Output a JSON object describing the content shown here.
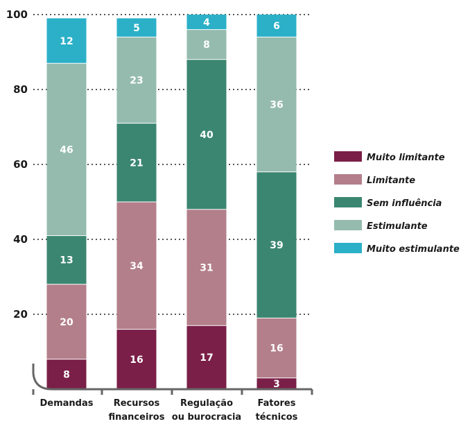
{
  "chart_data": {
    "type": "bar",
    "stacked": true,
    "categories": [
      [
        "Demandas"
      ],
      [
        "Recursos",
        "financeiros"
      ],
      [
        "Regulação",
        "ou burocracia"
      ],
      [
        "Fatores",
        "técnicos"
      ]
    ],
    "series": [
      {
        "name": "Muito limitante",
        "color": "#7a1f48",
        "values": [
          8,
          16,
          17,
          3
        ]
      },
      {
        "name": "Limitante",
        "color": "#b37f8a",
        "values": [
          20,
          34,
          31,
          16
        ]
      },
      {
        "name": "Sem influência",
        "color": "#3b8671",
        "values": [
          13,
          21,
          40,
          39
        ]
      },
      {
        "name": "Estimulante",
        "color": "#95bbaf",
        "values": [
          46,
          23,
          8,
          36
        ]
      },
      {
        "name": "Muito estimulante",
        "color": "#2bb0c8",
        "values": [
          12,
          5,
          4,
          6
        ]
      }
    ],
    "y_ticks": [
      "100",
      "80",
      "60",
      "40",
      "20"
    ],
    "ylim": [
      0,
      100
    ],
    "grid": true,
    "legend": "right"
  }
}
